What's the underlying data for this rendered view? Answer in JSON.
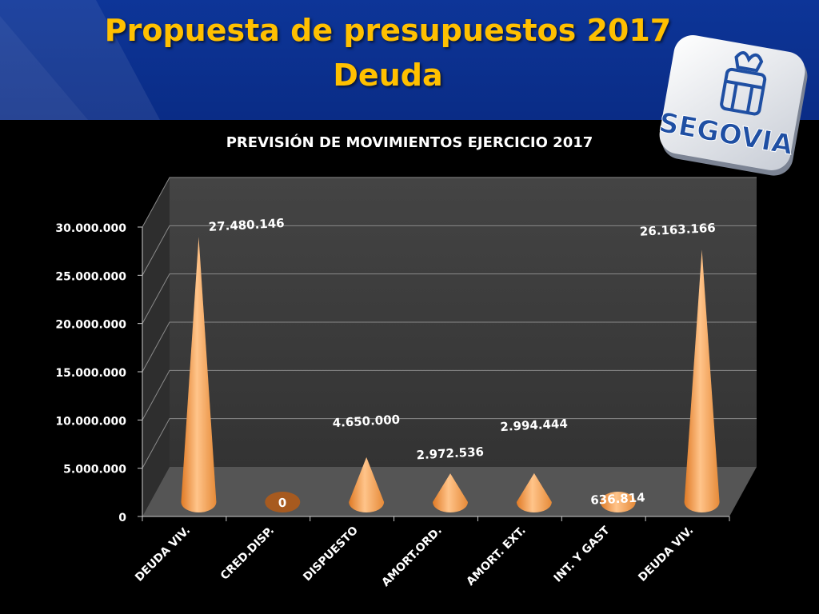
{
  "slide": {
    "title_line1": "Propuesta de presupuestos 2017",
    "title_line2": "Deuda",
    "logo_text": "SEGOVIA"
  },
  "colors": {
    "header_bg": "#0a2c86",
    "title": "#ffc000",
    "cone": "#f39a46",
    "plot_wall": "#3a3a3a"
  },
  "chart_data": {
    "type": "bar",
    "shape": "cone",
    "title": "PREVISIÓN DE MOVIMIENTOS EJERCICIO 2017",
    "categories": [
      "DEUDA VIV.",
      "CRED.DISP.",
      "DISPUESTO",
      "AMORT.ORD.",
      "AMORT. EXT.",
      "INT. Y GAST",
      "DEUDA VIV."
    ],
    "values": [
      27480146,
      0,
      4650000,
      2972536,
      2994444,
      636814,
      26163166
    ],
    "data_labels": [
      "27.480.146",
      "0",
      "4.650.000",
      "2.972.536",
      "2.994.444",
      "636.814",
      "26.163.166"
    ],
    "ylim": [
      0,
      30000000
    ],
    "yticks": [
      "0",
      "5.000.000",
      "10.000.000",
      "15.000.000",
      "20.000.000",
      "25.000.000",
      "30.000.000"
    ],
    "grid": true,
    "legend": "none"
  }
}
